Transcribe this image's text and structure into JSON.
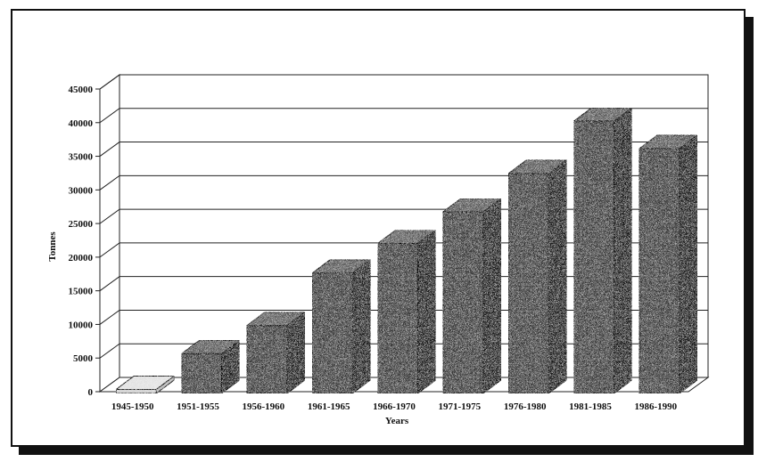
{
  "chart_data": {
    "type": "bar",
    "style": "3d",
    "categories": [
      "1945-1950",
      "1951-1955",
      "1956-1960",
      "1961-1965",
      "1966-1970",
      "1971-1975",
      "1976-1980",
      "1981-1985",
      "1986-1990"
    ],
    "values": [
      600,
      5900,
      10100,
      17900,
      22300,
      27000,
      32700,
      40500,
      36400
    ],
    "xlabel": "Years",
    "ylabel": "Tonnes",
    "ylim": [
      0,
      45000
    ],
    "yticks": [
      0,
      5000,
      10000,
      15000,
      20000,
      25000,
      30000,
      35000,
      40000,
      45000
    ],
    "grid": true,
    "legend": "none",
    "colors": {
      "bar_face": "#3a3a3a",
      "bar_side": "#1f1f1f",
      "bar_top": "#5a5a5a",
      "first_bar": "#cfcfcf",
      "grid": "#222222",
      "frame": "#111111"
    }
  }
}
